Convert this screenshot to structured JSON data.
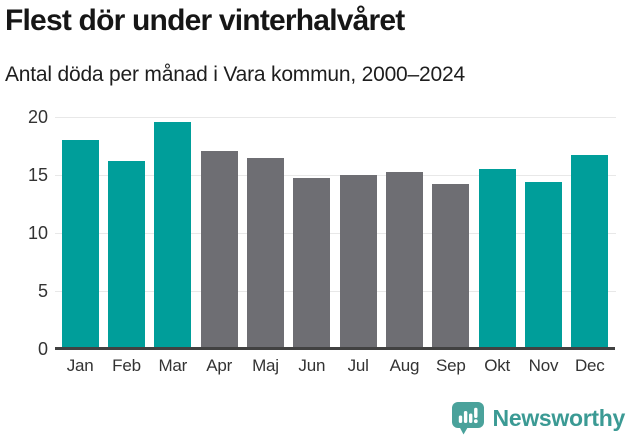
{
  "header": {
    "title": "Flest dör under vinterhalvåret",
    "subtitle": "Antal döda per månad i Vara kommun, 2000–2024"
  },
  "chart_data": {
    "type": "bar",
    "title": "Flest dör under vinterhalvåret",
    "subtitle": "Antal döda per månad i Vara kommun, 2000–2024",
    "categories": [
      "Jan",
      "Feb",
      "Mar",
      "Apr",
      "Maj",
      "Jun",
      "Jul",
      "Aug",
      "Sep",
      "Okt",
      "Nov",
      "Dec"
    ],
    "values": [
      18.0,
      16.2,
      19.6,
      17.1,
      16.5,
      14.7,
      15.0,
      15.3,
      14.2,
      15.5,
      14.4,
      16.7
    ],
    "highlighted": [
      true,
      true,
      true,
      false,
      false,
      false,
      false,
      false,
      false,
      true,
      true,
      true
    ],
    "colors": {
      "highlight": "#009e9a",
      "default": "#6e6e73",
      "gridline": "#e8e8e8",
      "axis_line": "#414141",
      "tick_text": "#333333"
    },
    "xlabel": "",
    "ylabel": "",
    "ylim": [
      0,
      20
    ],
    "yticks": [
      0,
      5,
      10,
      15,
      20
    ],
    "grid": "horizontal",
    "legend": "none"
  },
  "footer": {
    "brand": "Newsworthy",
    "brand_color": "#3b9a94",
    "logo_color": "#4aa29b",
    "logo_icon": "newsworthy-speech-bubble-bar-chart"
  }
}
